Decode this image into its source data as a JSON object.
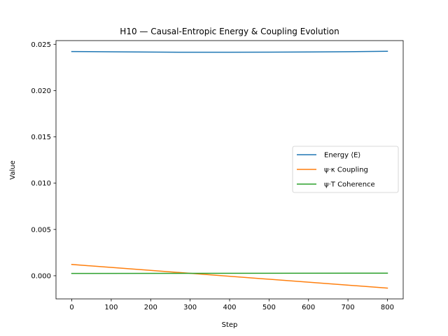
{
  "chart_data": {
    "type": "line",
    "title": "H10 — Causal-Entropic Energy & Coupling Evolution",
    "xlabel": "Step",
    "ylabel": "Value",
    "xlim": [
      -40,
      840
    ],
    "ylim": [
      -0.0025,
      0.0254
    ],
    "xticks": [
      0,
      100,
      200,
      300,
      400,
      500,
      600,
      700,
      800
    ],
    "xtick_labels": [
      "0",
      "100",
      "200",
      "300",
      "400",
      "500",
      "600",
      "700",
      "800"
    ],
    "yticks": [
      0.0,
      0.005,
      0.01,
      0.015,
      0.02,
      0.025
    ],
    "ytick_labels": [
      "0.000",
      "0.005",
      "0.010",
      "0.015",
      "0.020",
      "0.025"
    ],
    "grid": false,
    "legend_position": "center-right",
    "series": [
      {
        "name": "Energy ⟨E⟩",
        "color": "#1f77b4",
        "x": [
          0,
          100,
          200,
          300,
          400,
          500,
          600,
          700,
          800
        ],
        "y": [
          0.02422,
          0.02419,
          0.02416,
          0.02414,
          0.02414,
          0.02415,
          0.02417,
          0.0242,
          0.02425
        ]
      },
      {
        "name": "ψ·κ Coupling",
        "color": "#ff7f0e",
        "x": [
          0,
          800
        ],
        "y": [
          0.00122,
          -0.00133
        ]
      },
      {
        "name": "ψ·T Coherence",
        "color": "#2ca02c",
        "x": [
          0,
          800
        ],
        "y": [
          0.00025,
          0.00028
        ]
      }
    ]
  }
}
